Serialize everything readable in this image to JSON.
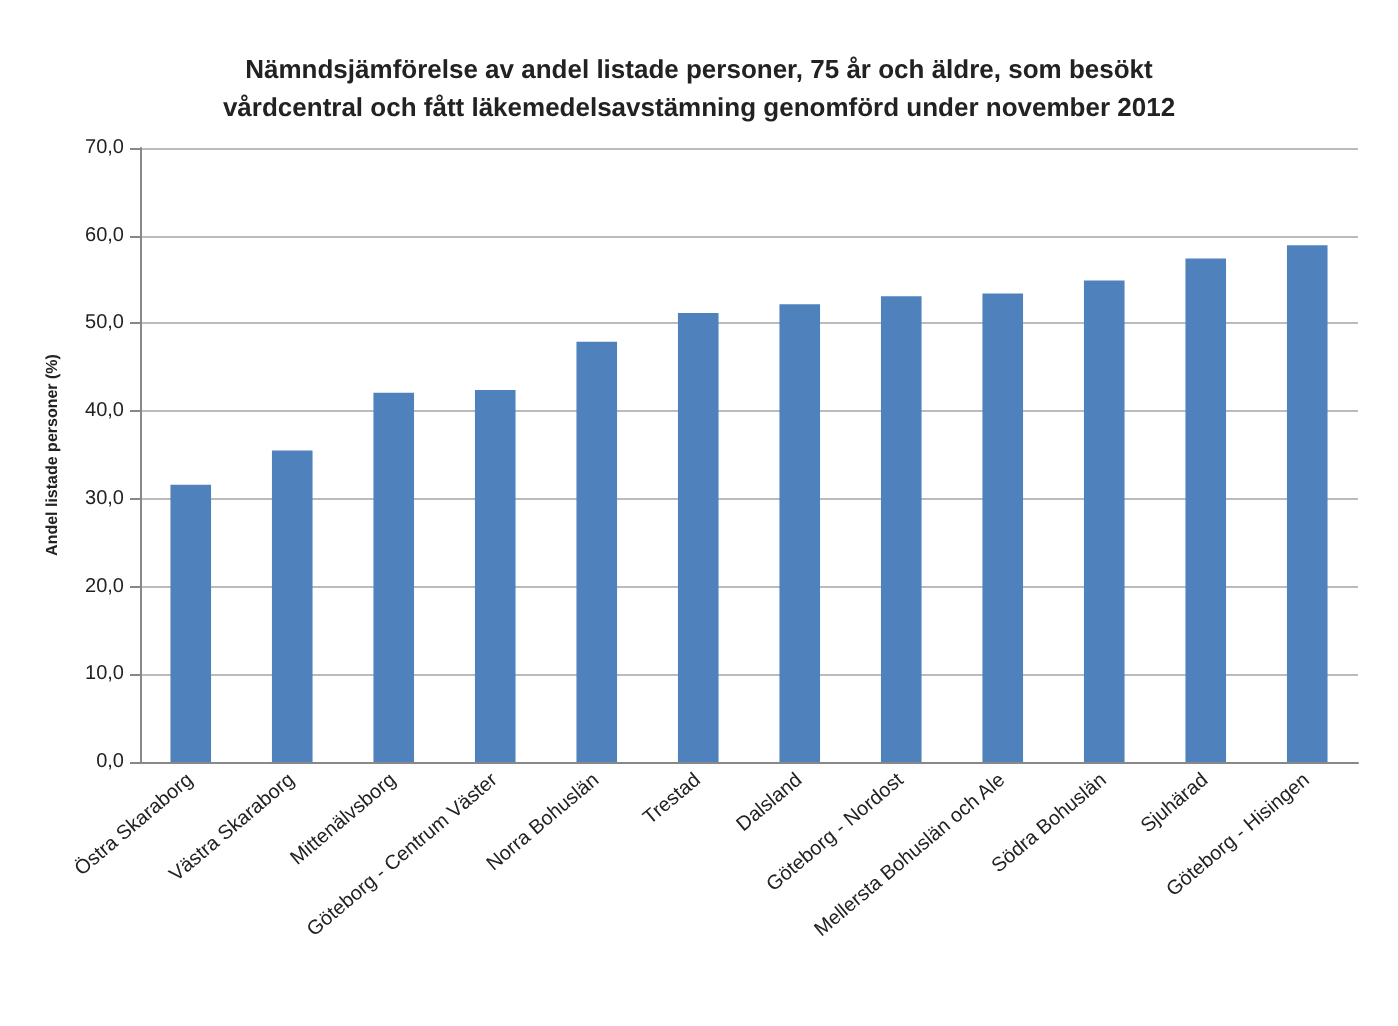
{
  "chart_data": {
    "type": "bar",
    "title": "Nämndsjämförelse av andel listade personer, 75 år och äldre, som besökt\nvårdcentral och fått läkemedelsavstämning genomförd under november 2012",
    "ylabel": "Andel listade personer (%)",
    "categories": [
      "Östra Skaraborg",
      "Västra Skaraborg",
      "Mittenälvsborg",
      "Göteborg - Centrum Väster",
      "Norra Bohuslän",
      "Trestad",
      "Dalsland",
      "Göteborg - Nordost",
      "Mellersta Bohuslän och Ale",
      "Södra Bohuslän",
      "Sjuhärad",
      "Göteborg - Hisingen"
    ],
    "values": [
      31.6,
      35.5,
      42.1,
      42.4,
      47.9,
      51.2,
      52.2,
      53.1,
      53.4,
      54.9,
      57.4,
      58.9
    ],
    "color": "#4f81bd",
    "ylim": [
      0,
      70
    ],
    "yticks": [
      {
        "value": 0,
        "label": "0,0"
      },
      {
        "value": 10,
        "label": "10,0"
      },
      {
        "value": 20,
        "label": "20,0"
      },
      {
        "value": 30,
        "label": "30,0"
      },
      {
        "value": 40,
        "label": "40,0"
      },
      {
        "value": 50,
        "label": "50,0"
      },
      {
        "value": 60,
        "label": "60,0"
      },
      {
        "value": 70,
        "label": "70,0"
      }
    ],
    "grid": "y"
  }
}
